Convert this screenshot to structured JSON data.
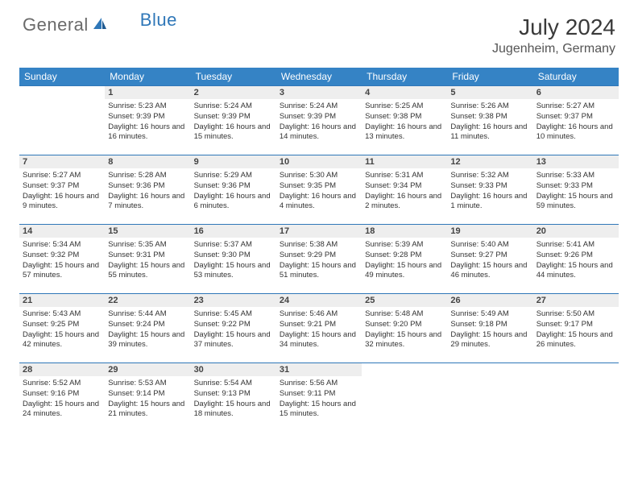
{
  "brand": {
    "part1": "General",
    "part2": "Blue"
  },
  "title": "July 2024",
  "location": "Jugenheim, Germany",
  "colors": {
    "header_bg": "#3583c5",
    "header_text": "#ffffff",
    "rule": "#2f77b8",
    "daynum_bg": "#eeeeee",
    "body_text": "#333333",
    "brand_gray": "#6a6a6a",
    "brand_blue": "#2f77b8"
  },
  "weekdays": [
    "Sunday",
    "Monday",
    "Tuesday",
    "Wednesday",
    "Thursday",
    "Friday",
    "Saturday"
  ],
  "layout": {
    "columns": 7,
    "rows": 5,
    "first_day_column_index": 1,
    "days_in_month": 31
  },
  "days": [
    {
      "n": 1,
      "sunrise": "5:23 AM",
      "sunset": "9:39 PM",
      "daylight": "16 hours and 16 minutes."
    },
    {
      "n": 2,
      "sunrise": "5:24 AM",
      "sunset": "9:39 PM",
      "daylight": "16 hours and 15 minutes."
    },
    {
      "n": 3,
      "sunrise": "5:24 AM",
      "sunset": "9:39 PM",
      "daylight": "16 hours and 14 minutes."
    },
    {
      "n": 4,
      "sunrise": "5:25 AM",
      "sunset": "9:38 PM",
      "daylight": "16 hours and 13 minutes."
    },
    {
      "n": 5,
      "sunrise": "5:26 AM",
      "sunset": "9:38 PM",
      "daylight": "16 hours and 11 minutes."
    },
    {
      "n": 6,
      "sunrise": "5:27 AM",
      "sunset": "9:37 PM",
      "daylight": "16 hours and 10 minutes."
    },
    {
      "n": 7,
      "sunrise": "5:27 AM",
      "sunset": "9:37 PM",
      "daylight": "16 hours and 9 minutes."
    },
    {
      "n": 8,
      "sunrise": "5:28 AM",
      "sunset": "9:36 PM",
      "daylight": "16 hours and 7 minutes."
    },
    {
      "n": 9,
      "sunrise": "5:29 AM",
      "sunset": "9:36 PM",
      "daylight": "16 hours and 6 minutes."
    },
    {
      "n": 10,
      "sunrise": "5:30 AM",
      "sunset": "9:35 PM",
      "daylight": "16 hours and 4 minutes."
    },
    {
      "n": 11,
      "sunrise": "5:31 AM",
      "sunset": "9:34 PM",
      "daylight": "16 hours and 2 minutes."
    },
    {
      "n": 12,
      "sunrise": "5:32 AM",
      "sunset": "9:33 PM",
      "daylight": "16 hours and 1 minute."
    },
    {
      "n": 13,
      "sunrise": "5:33 AM",
      "sunset": "9:33 PM",
      "daylight": "15 hours and 59 minutes."
    },
    {
      "n": 14,
      "sunrise": "5:34 AM",
      "sunset": "9:32 PM",
      "daylight": "15 hours and 57 minutes."
    },
    {
      "n": 15,
      "sunrise": "5:35 AM",
      "sunset": "9:31 PM",
      "daylight": "15 hours and 55 minutes."
    },
    {
      "n": 16,
      "sunrise": "5:37 AM",
      "sunset": "9:30 PM",
      "daylight": "15 hours and 53 minutes."
    },
    {
      "n": 17,
      "sunrise": "5:38 AM",
      "sunset": "9:29 PM",
      "daylight": "15 hours and 51 minutes."
    },
    {
      "n": 18,
      "sunrise": "5:39 AM",
      "sunset": "9:28 PM",
      "daylight": "15 hours and 49 minutes."
    },
    {
      "n": 19,
      "sunrise": "5:40 AM",
      "sunset": "9:27 PM",
      "daylight": "15 hours and 46 minutes."
    },
    {
      "n": 20,
      "sunrise": "5:41 AM",
      "sunset": "9:26 PM",
      "daylight": "15 hours and 44 minutes."
    },
    {
      "n": 21,
      "sunrise": "5:43 AM",
      "sunset": "9:25 PM",
      "daylight": "15 hours and 42 minutes."
    },
    {
      "n": 22,
      "sunrise": "5:44 AM",
      "sunset": "9:24 PM",
      "daylight": "15 hours and 39 minutes."
    },
    {
      "n": 23,
      "sunrise": "5:45 AM",
      "sunset": "9:22 PM",
      "daylight": "15 hours and 37 minutes."
    },
    {
      "n": 24,
      "sunrise": "5:46 AM",
      "sunset": "9:21 PM",
      "daylight": "15 hours and 34 minutes."
    },
    {
      "n": 25,
      "sunrise": "5:48 AM",
      "sunset": "9:20 PM",
      "daylight": "15 hours and 32 minutes."
    },
    {
      "n": 26,
      "sunrise": "5:49 AM",
      "sunset": "9:18 PM",
      "daylight": "15 hours and 29 minutes."
    },
    {
      "n": 27,
      "sunrise": "5:50 AM",
      "sunset": "9:17 PM",
      "daylight": "15 hours and 26 minutes."
    },
    {
      "n": 28,
      "sunrise": "5:52 AM",
      "sunset": "9:16 PM",
      "daylight": "15 hours and 24 minutes."
    },
    {
      "n": 29,
      "sunrise": "5:53 AM",
      "sunset": "9:14 PM",
      "daylight": "15 hours and 21 minutes."
    },
    {
      "n": 30,
      "sunrise": "5:54 AM",
      "sunset": "9:13 PM",
      "daylight": "15 hours and 18 minutes."
    },
    {
      "n": 31,
      "sunrise": "5:56 AM",
      "sunset": "9:11 PM",
      "daylight": "15 hours and 15 minutes."
    }
  ],
  "labels": {
    "sunrise": "Sunrise:",
    "sunset": "Sunset:",
    "daylight": "Daylight:"
  }
}
